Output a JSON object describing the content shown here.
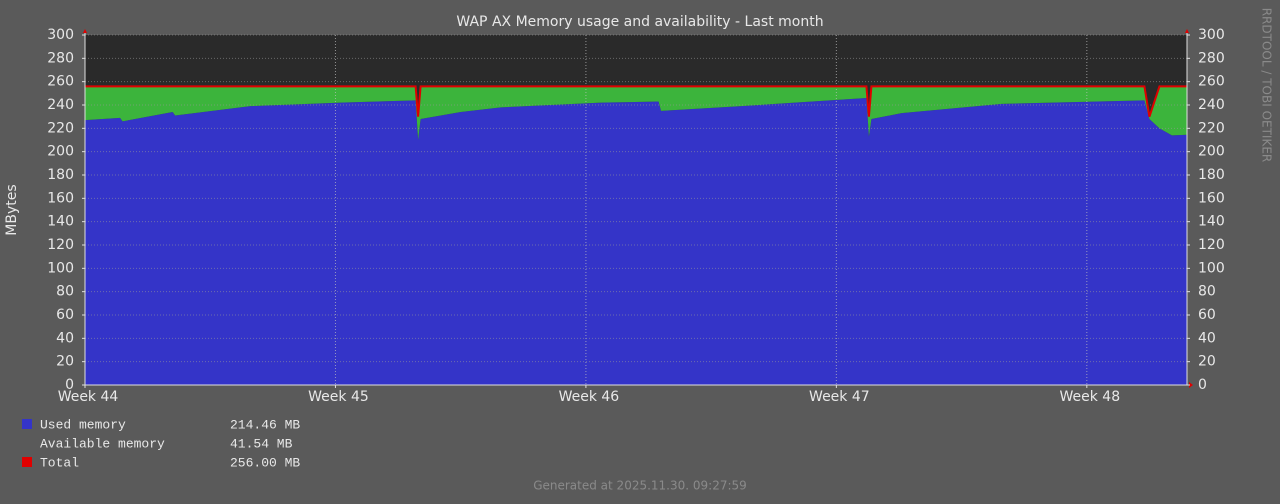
{
  "chart_data": {
    "type": "stacked-area",
    "title": "WAP AX Memory usage and availability - Last month",
    "ylabel": "MBytes",
    "watermark": "RRDTOOL / TOBI OETIKER",
    "footer": "Generated at 2025.11.30. 09:27:59",
    "x": [
      44.0,
      44.14,
      44.15,
      44.35,
      44.36,
      44.66,
      45.02,
      45.32,
      45.33,
      45.34,
      45.5,
      45.66,
      46.06,
      46.29,
      46.3,
      46.62,
      47.12,
      47.13,
      47.14,
      47.26,
      47.66,
      48.23,
      48.25,
      48.29,
      48.34,
      48.4
    ],
    "xlim": [
      44.0,
      48.4
    ],
    "xticks": [
      {
        "value": 44,
        "label": "Week 44"
      },
      {
        "value": 45,
        "label": "Week 45"
      },
      {
        "value": 46,
        "label": "Week 46"
      },
      {
        "value": 47,
        "label": "Week 47"
      },
      {
        "value": 48,
        "label": "Week 48"
      }
    ],
    "ylim": [
      0,
      300
    ],
    "yticks": [
      0,
      20,
      40,
      60,
      80,
      100,
      120,
      140,
      160,
      180,
      200,
      220,
      240,
      260,
      280,
      300
    ],
    "grid": true,
    "series": [
      {
        "name": "Used memory",
        "color": "#3434c8",
        "legend_value": "214.46 MB",
        "swatch": true,
        "values": [
          227,
          229,
          226,
          234,
          231,
          239,
          242,
          244,
          210,
          228,
          234,
          238,
          242,
          243,
          235,
          239,
          246,
          213,
          228,
          233,
          241,
          244,
          228,
          220,
          214,
          214.46
        ]
      },
      {
        "name": "Available memory",
        "color": "#3cb43c",
        "legend_value": "41.54 MB",
        "swatch": false,
        "values": [
          29,
          27,
          30,
          22,
          25,
          17,
          14,
          12,
          20,
          28,
          22,
          18,
          14,
          13,
          21,
          17,
          10,
          17,
          28,
          23,
          15,
          12,
          2,
          36,
          42,
          41.54
        ]
      },
      {
        "name": "Total",
        "color": "#e00000",
        "legend_value": "256.00 MB",
        "swatch": true,
        "line": true,
        "values": [
          256,
          256,
          256,
          256,
          256,
          256,
          256,
          256,
          230,
          256,
          256,
          256,
          256,
          256,
          256,
          256,
          256,
          230,
          256,
          256,
          256,
          256,
          230,
          256,
          256,
          256
        ]
      }
    ]
  }
}
